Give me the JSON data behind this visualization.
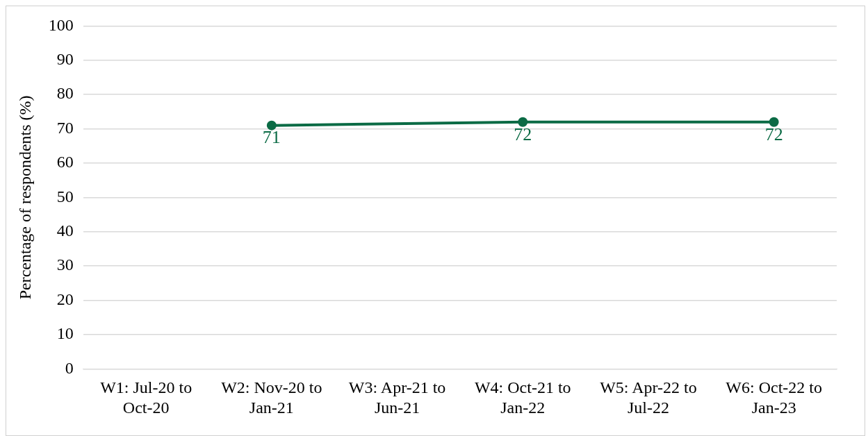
{
  "chart_data": {
    "type": "line",
    "ylabel": "Percentage of respondents (%)",
    "categories": [
      "W1: Jul-20 to Oct-20",
      "W2: Nov-20 to Jan-21",
      "W3: Apr-21 to Jun-21",
      "W4: Oct-21 to Jan-22",
      "W5: Apr-22 to Jul-22",
      "W6: Oct-22 to Jan-23"
    ],
    "series": [
      {
        "color": "#0b6b45",
        "values": [
          null,
          71,
          null,
          72,
          null,
          72
        ]
      }
    ],
    "ylim": [
      0,
      100
    ],
    "yticks": [
      0,
      10,
      20,
      30,
      40,
      50,
      60,
      70,
      80,
      90,
      100
    ],
    "grid": "y",
    "legend": false,
    "marker": "circle",
    "line_style": "solid",
    "data_labels": true
  }
}
